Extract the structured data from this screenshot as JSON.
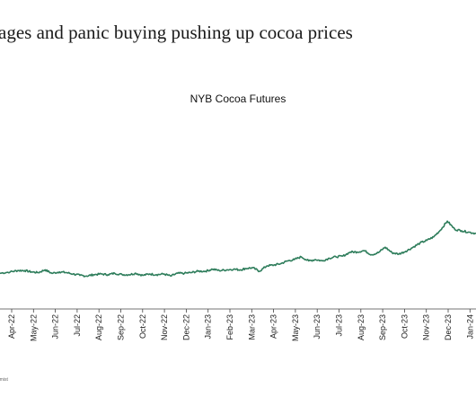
{
  "headline": "ages and panic buying pushing up cocoa prices",
  "source_fragment": "omist",
  "colors": {
    "line": "#2e7d5b",
    "axis": "#444444",
    "text": "#1a1a1a"
  },
  "chart_data": {
    "type": "line",
    "title": "NYB Cocoa Futures",
    "xlabel": "",
    "ylabel": "",
    "grid": false,
    "x_tick_labels": [
      "Apr-22",
      "May-22",
      "Jun-22",
      "Jul-22",
      "Aug-22",
      "Sep-22",
      "Oct-22",
      "Nov-22",
      "Dec-22",
      "Jan-23",
      "Feb-23",
      "Mar-23",
      "Apr-23",
      "May-23",
      "Jun-23",
      "Jul-23",
      "Aug-23",
      "Sep-23",
      "Oct-23",
      "Nov-23",
      "Dec-23",
      "Jan-24"
    ],
    "x_range": [
      "2022-03-10",
      "2024-02-05"
    ],
    "y_range": [
      2000,
      4800
    ],
    "series": [
      {
        "x": [
          "2022-03-10",
          "2022-03-25",
          "2022-04-05",
          "2022-04-15",
          "2022-04-25",
          "2022-05-05",
          "2022-05-15",
          "2022-05-25",
          "2022-06-05",
          "2022-06-15",
          "2022-06-25",
          "2022-07-05",
          "2022-07-15",
          "2022-07-25",
          "2022-08-05",
          "2022-08-15",
          "2022-08-25",
          "2022-09-05",
          "2022-09-15",
          "2022-09-25",
          "2022-10-05",
          "2022-10-15",
          "2022-10-25",
          "2022-11-05",
          "2022-11-15",
          "2022-11-25",
          "2022-12-05",
          "2022-12-15",
          "2022-12-25",
          "2023-01-05",
          "2023-01-15",
          "2023-01-25",
          "2023-02-05",
          "2023-02-15",
          "2023-02-25",
          "2023-03-05",
          "2023-03-15",
          "2023-03-25",
          "2023-04-05",
          "2023-04-15",
          "2023-04-25",
          "2023-05-05",
          "2023-05-15",
          "2023-05-25",
          "2023-06-05",
          "2023-06-15",
          "2023-06-25",
          "2023-07-05",
          "2023-07-15",
          "2023-07-25",
          "2023-08-05",
          "2023-08-15",
          "2023-08-25",
          "2023-09-05",
          "2023-09-15",
          "2023-09-25",
          "2023-10-05",
          "2023-10-15",
          "2023-10-25",
          "2023-11-05",
          "2023-11-15",
          "2023-11-25",
          "2023-12-05",
          "2023-12-15",
          "2023-12-25",
          "2024-01-05",
          "2024-01-15",
          "2024-01-25",
          "2024-02-05"
        ],
        "values": [
          2520,
          2540,
          2560,
          2560,
          2540,
          2530,
          2570,
          2520,
          2540,
          2530,
          2510,
          2490,
          2480,
          2500,
          2510,
          2500,
          2520,
          2500,
          2500,
          2520,
          2490,
          2510,
          2500,
          2510,
          2480,
          2520,
          2520,
          2530,
          2550,
          2550,
          2580,
          2560,
          2570,
          2580,
          2570,
          2590,
          2600,
          2550,
          2630,
          2640,
          2660,
          2700,
          2720,
          2760,
          2700,
          2720,
          2700,
          2740,
          2760,
          2770,
          2830,
          2830,
          2850,
          2790,
          2820,
          2900,
          2820,
          2800,
          2840,
          2900,
          2960,
          3000,
          3050,
          3150,
          3280,
          3160,
          3140,
          3120,
          3100
        ]
      }
    ]
  }
}
